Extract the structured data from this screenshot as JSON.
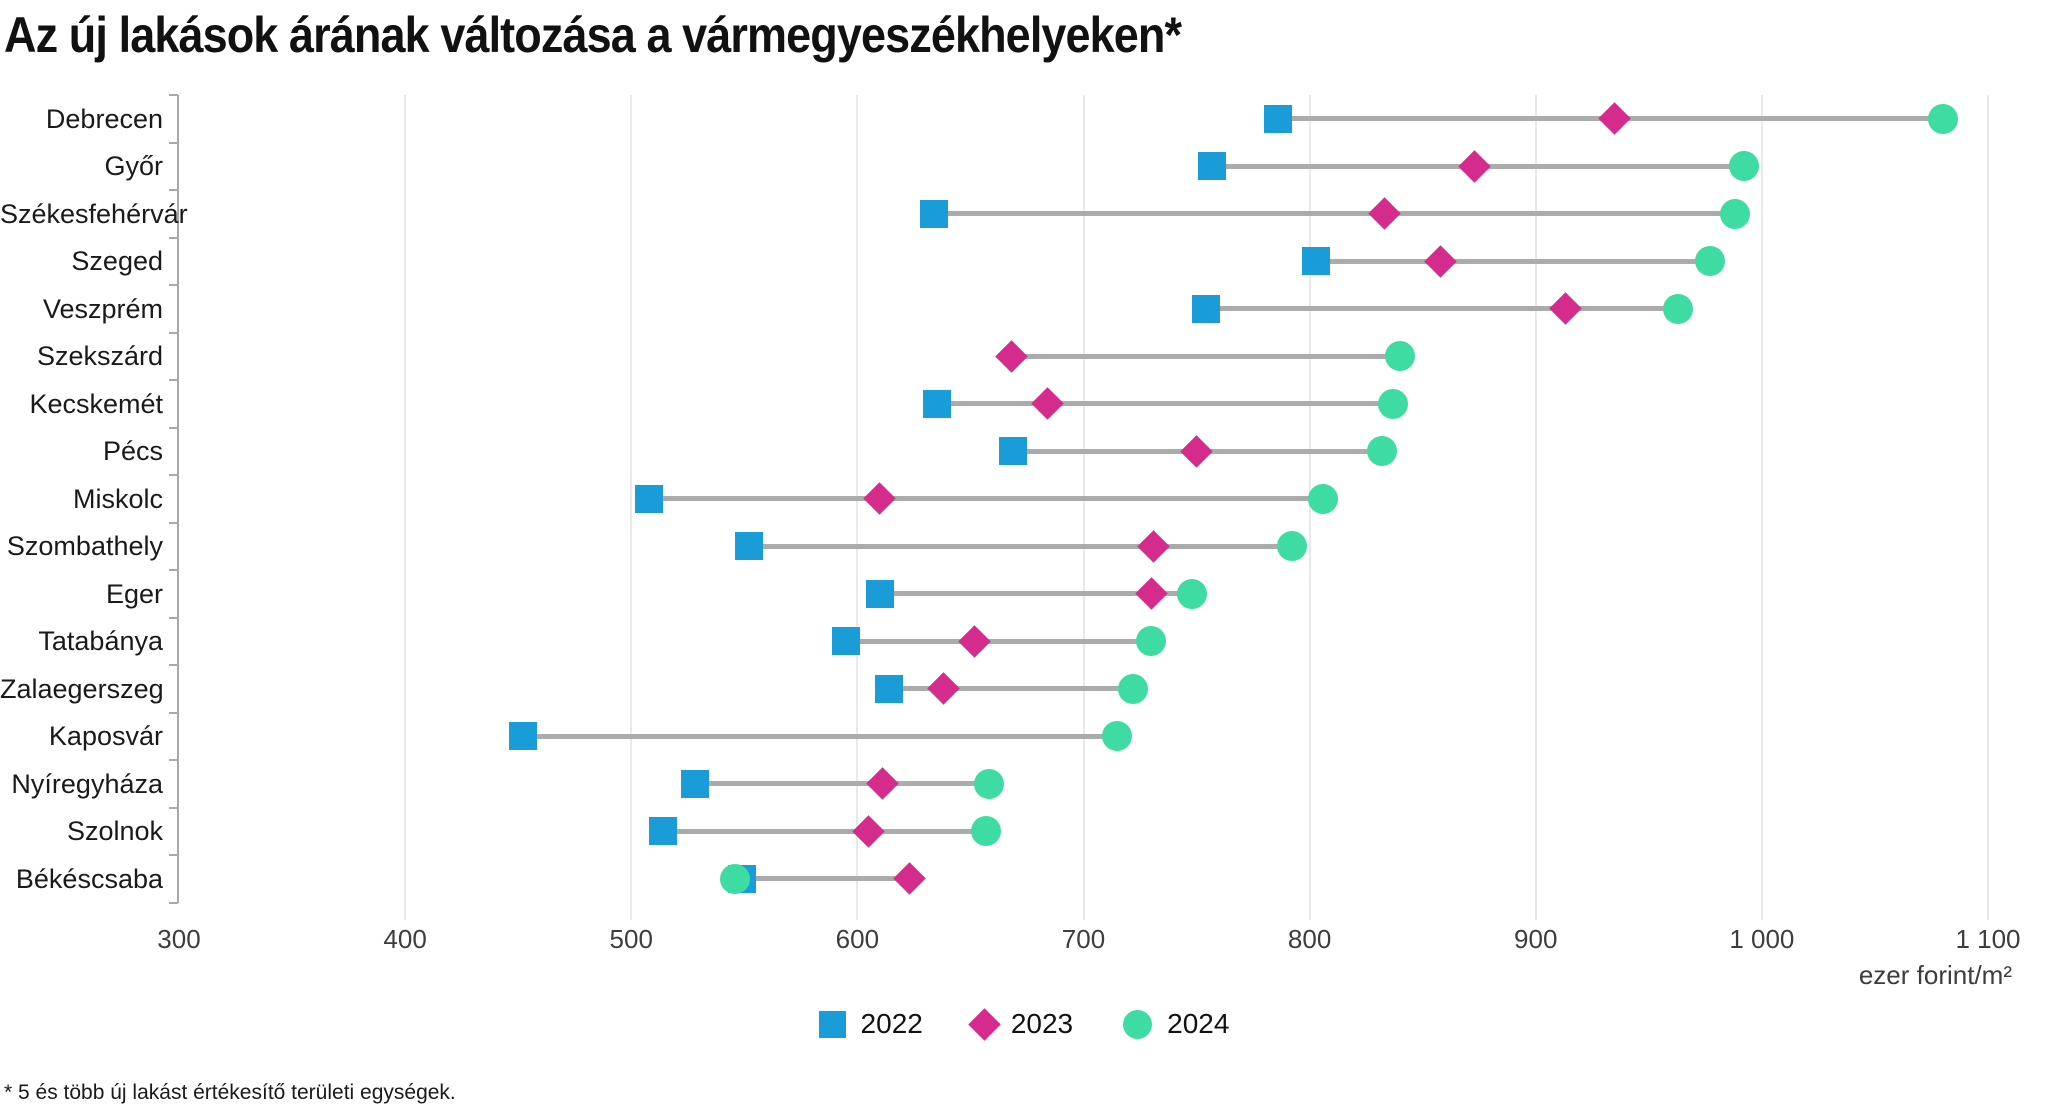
{
  "title": "Az új lakások árának változása a vármegyeszékhelyeken*",
  "footnote": "* 5 és több új lakást értékesítő területi egységek.",
  "axis_caption": "ezer forint/m²",
  "colors": {
    "year2022": "#199cd8",
    "year2023": "#d42b8d",
    "year2024": "#3edca2",
    "connector": "#ababab",
    "gridline": "#e9e9e9",
    "axis": "#a9a9a9"
  },
  "legend": [
    {
      "label": "2022",
      "shape": "square",
      "color": "#199cd8"
    },
    {
      "label": "2023",
      "shape": "diamond",
      "color": "#d42b8d"
    },
    {
      "label": "2024",
      "shape": "circle",
      "color": "#3edca2"
    }
  ],
  "chart_data": {
    "type": "dumbbell",
    "title": "Az új lakások árának változása a vármegyeszékhelyeken*",
    "xlabel": "ezer forint/m²",
    "ylabel": "",
    "xlim": [
      300,
      1111
    ],
    "grid": "vertical",
    "legend_position": "bottom",
    "x_ticks": [
      {
        "value": 300,
        "label": "300"
      },
      {
        "value": 400,
        "label": "400"
      },
      {
        "value": 500,
        "label": "500"
      },
      {
        "value": 600,
        "label": "600"
      },
      {
        "value": 700,
        "label": "700"
      },
      {
        "value": 800,
        "label": "800"
      },
      {
        "value": 900,
        "label": "900"
      },
      {
        "value": 1000,
        "label": "1 000"
      },
      {
        "value": 1100,
        "label": "1 100"
      }
    ],
    "categories": [
      "Debrecen",
      "Győr",
      "Székesfehérvár",
      "Szeged",
      "Veszprém",
      "Szekszárd",
      "Kecskemét",
      "Pécs",
      "Miskolc",
      "Szombathely",
      "Eger",
      "Tatabánya",
      "Zalaegerszeg",
      "Kaposvár",
      "Nyíregyháza",
      "Szolnok",
      "Békéscsaba"
    ],
    "series": [
      {
        "name": "2022",
        "marker": "square",
        "color": "#199cd8",
        "values": [
          786,
          757,
          634,
          803,
          754,
          null,
          635,
          669,
          508,
          552,
          610,
          595,
          614,
          452,
          528,
          514,
          549
        ]
      },
      {
        "name": "2023",
        "marker": "diamond",
        "color": "#d42b8d",
        "values": [
          935,
          873,
          833,
          858,
          913,
          668,
          684,
          750,
          610,
          731,
          730,
          652,
          638,
          null,
          611,
          605,
          623
        ]
      },
      {
        "name": "2024",
        "marker": "circle",
        "color": "#3edca2",
        "values": [
          1080,
          992,
          988,
          977,
          963,
          840,
          837,
          832,
          806,
          792,
          748,
          730,
          722,
          715,
          658,
          657,
          546
        ]
      }
    ]
  }
}
